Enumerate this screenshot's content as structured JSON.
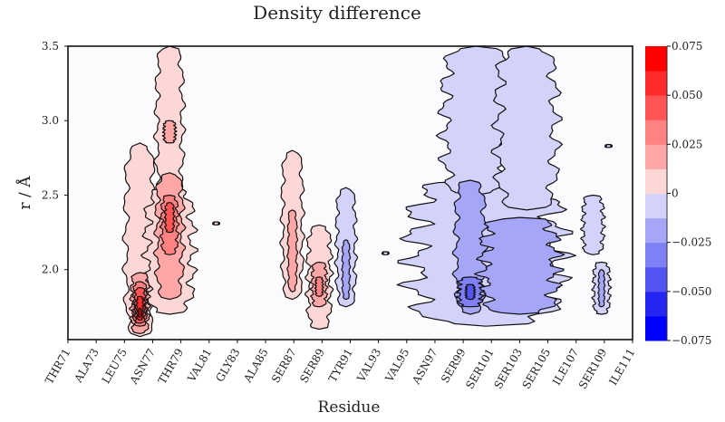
{
  "chart_data": {
    "type": "contour",
    "title": "Density difference",
    "xlabel": "Residue",
    "ylabel": "r / Å",
    "xlim": [
      71,
      111
    ],
    "ylim": [
      1.53,
      3.5
    ],
    "x_ticks": [
      {
        "value": 71,
        "label": "THR71"
      },
      {
        "value": 73,
        "label": "ALA73"
      },
      {
        "value": 75,
        "label": "LEU75"
      },
      {
        "value": 77,
        "label": "ASN77"
      },
      {
        "value": 79,
        "label": "THR79"
      },
      {
        "value": 81,
        "label": "VAL81"
      },
      {
        "value": 83,
        "label": "GLY83"
      },
      {
        "value": 85,
        "label": "ALA85"
      },
      {
        "value": 87,
        "label": "SER87"
      },
      {
        "value": 89,
        "label": "SER89"
      },
      {
        "value": 91,
        "label": "TYR91"
      },
      {
        "value": 93,
        "label": "VAL93"
      },
      {
        "value": 95,
        "label": "VAL95"
      },
      {
        "value": 97,
        "label": "ASN97"
      },
      {
        "value": 99,
        "label": "SER99"
      },
      {
        "value": 101,
        "label": "SER101"
      },
      {
        "value": 103,
        "label": "SER103"
      },
      {
        "value": 105,
        "label": "SER105"
      },
      {
        "value": 107,
        "label": "ILE107"
      },
      {
        "value": 109,
        "label": "SER109"
      },
      {
        "value": 111,
        "label": "ILE111"
      }
    ],
    "y_ticks": [
      {
        "value": 2.0,
        "label": "2.0"
      },
      {
        "value": 2.5,
        "label": "2.5"
      },
      {
        "value": 3.0,
        "label": "3.0"
      },
      {
        "value": 3.5,
        "label": "3.5"
      }
    ],
    "colorbar": {
      "range": [
        -0.075,
        0.075
      ],
      "levels": [
        -0.075,
        -0.0625,
        -0.05,
        -0.0375,
        -0.025,
        -0.0125,
        0,
        0.0125,
        0.025,
        0.0375,
        0.05,
        0.0625,
        0.075
      ],
      "colors": [
        "#0000ff",
        "#2626f2",
        "#5454f2",
        "#8080f6",
        "#a6a6f8",
        "#d2d2fa",
        "#fbfbfd",
        "#fdd6d6",
        "#ffa6a6",
        "#ff8282",
        "#ff5454",
        "#ff2a2a",
        "#ff0000"
      ],
      "ticks": [
        {
          "value": 0.075,
          "label": "0.075"
        },
        {
          "value": 0.05,
          "label": "0.050"
        },
        {
          "value": 0.025,
          "label": "0.025"
        },
        {
          "value": 0,
          "label": "0"
        },
        {
          "value": -0.025,
          "label": "−0.025"
        },
        {
          "value": -0.05,
          "label": "−0.050"
        },
        {
          "value": -0.075,
          "label": "−0.075"
        }
      ]
    },
    "regions": [
      {
        "residue": 76.1,
        "half_width": 1.0,
        "r": [
          1.55,
          2.85
        ],
        "level": 0.0125
      },
      {
        "residue": 78.2,
        "half_width": 1.6,
        "r": [
          1.7,
          2.55
        ],
        "level": 0.0125
      },
      {
        "residue": 78.2,
        "half_width": 0.9,
        "r": [
          2.45,
          3.5
        ],
        "level": 0.0125
      },
      {
        "residue": 86.9,
        "half_width": 0.7,
        "r": [
          1.8,
          2.8
        ],
        "level": 0.0125
      },
      {
        "residue": 88.8,
        "half_width": 0.8,
        "r": [
          1.6,
          2.3
        ],
        "level": 0.0125
      },
      {
        "residue": 81.5,
        "half_width": 0.2,
        "r": [
          2.3,
          2.32
        ],
        "level": 0.0125
      },
      {
        "residue": 76.1,
        "half_width": 0.6,
        "r": [
          1.57,
          1.98
        ],
        "level": 0.025
      },
      {
        "residue": 78.2,
        "half_width": 0.9,
        "r": [
          1.8,
          2.65
        ],
        "level": 0.025
      },
      {
        "residue": 78.2,
        "half_width": 0.4,
        "r": [
          2.85,
          3.0
        ],
        "level": 0.025
      },
      {
        "residue": 86.9,
        "half_width": 0.3,
        "r": [
          1.85,
          2.4
        ],
        "level": 0.025
      },
      {
        "residue": 88.8,
        "half_width": 0.5,
        "r": [
          1.75,
          2.05
        ],
        "level": 0.025
      },
      {
        "residue": 76.1,
        "half_width": 0.45,
        "r": [
          1.62,
          1.92
        ],
        "level": 0.0375
      },
      {
        "residue": 78.2,
        "half_width": 0.55,
        "r": [
          2.1,
          2.5
        ],
        "level": 0.0375
      },
      {
        "residue": 88.8,
        "half_width": 0.25,
        "r": [
          1.82,
          1.95
        ],
        "level": 0.0375
      },
      {
        "residue": 76.1,
        "half_width": 0.35,
        "r": [
          1.64,
          1.88
        ],
        "level": 0.05
      },
      {
        "residue": 78.2,
        "half_width": 0.3,
        "r": [
          2.25,
          2.45
        ],
        "level": 0.05
      },
      {
        "residue": 76.1,
        "half_width": 0.22,
        "r": [
          1.66,
          1.82
        ],
        "level": 0.0625
      },
      {
        "residue": 76.1,
        "half_width": 0.1,
        "r": [
          1.68,
          1.74
        ],
        "level": 0.075
      },
      {
        "residue": 90.7,
        "half_width": 0.65,
        "r": [
          1.75,
          2.55
        ],
        "level": -0.0125
      },
      {
        "residue": 93.5,
        "half_width": 0.2,
        "r": [
          2.1,
          2.12
        ],
        "level": -0.0125
      },
      {
        "residue": 100.6,
        "half_width": 5.0,
        "r": [
          1.62,
          2.6
        ],
        "level": -0.0125
      },
      {
        "residue": 99.9,
        "half_width": 2.2,
        "r": [
          2.5,
          3.5
        ],
        "level": -0.0125
      },
      {
        "residue": 103.5,
        "half_width": 2.0,
        "r": [
          2.4,
          3.5
        ],
        "level": -0.0125
      },
      {
        "residue": 108.8,
        "half_width": 0.55,
        "r": [
          1.7,
          2.05
        ],
        "level": -0.0125
      },
      {
        "residue": 108.2,
        "half_width": 0.7,
        "r": [
          2.1,
          2.5
        ],
        "level": -0.0125
      },
      {
        "residue": 109.3,
        "half_width": 0.2,
        "r": [
          2.82,
          2.84
        ],
        "level": -0.0125
      },
      {
        "residue": 90.7,
        "half_width": 0.25,
        "r": [
          1.8,
          2.2
        ],
        "level": -0.025
      },
      {
        "residue": 99.5,
        "half_width": 1.0,
        "r": [
          1.7,
          2.6
        ],
        "level": -0.025
      },
      {
        "residue": 103.0,
        "half_width": 2.5,
        "r": [
          1.7,
          2.35
        ],
        "level": -0.025
      },
      {
        "residue": 108.8,
        "half_width": 0.2,
        "r": [
          1.75,
          2.0
        ],
        "level": -0.025
      },
      {
        "residue": 99.5,
        "half_width": 0.8,
        "r": [
          1.75,
          1.95
        ],
        "level": -0.0375
      },
      {
        "residue": 99.5,
        "half_width": 0.3,
        "r": [
          1.8,
          1.9
        ],
        "level": -0.05
      }
    ]
  }
}
